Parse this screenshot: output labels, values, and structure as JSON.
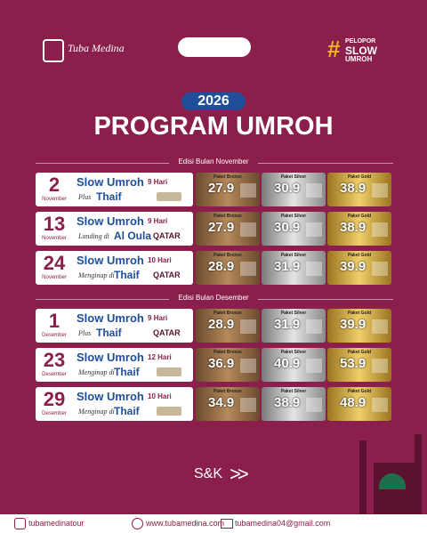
{
  "header": {
    "brand": "Tuba Medina",
    "badge": [
      "#",
      "PELOPOR",
      "SLOW",
      "UMROH"
    ],
    "year": "2026",
    "title": "PROGRAM UMROH"
  },
  "package_labels": [
    "Paket Bronze",
    "Paket Silver",
    "Paket Gold"
  ],
  "sections": [
    {
      "label": "Edisi Bulan November",
      "rows": [
        {
          "day": "2",
          "month": "November",
          "program": "Slow Umroh",
          "duration": "9 Hari",
          "subtitle": "Plus",
          "place": "Thaif",
          "airline": null,
          "prices": [
            27.9,
            30.9,
            38.9
          ]
        },
        {
          "day": "13",
          "month": "November",
          "program": "Slow Umroh",
          "duration": "9 Hari",
          "subtitle": "Landing di",
          "place": "Al Oula",
          "airline": "QATAR",
          "prices": [
            27.9,
            30.9,
            38.9
          ]
        },
        {
          "day": "24",
          "month": "November",
          "program": "Slow Umroh",
          "duration": "10 Hari",
          "subtitle": "Menginap di",
          "place": "Thaif",
          "airline": "QATAR",
          "prices": [
            28.9,
            31.9,
            39.9
          ]
        }
      ]
    },
    {
      "label": "Edisi Bulan Desember",
      "rows": [
        {
          "day": "1",
          "month": "Desember",
          "program": "Slow Umroh",
          "duration": "9 Hari",
          "subtitle": "Plus",
          "place": "Thaif",
          "airline": "QATAR",
          "prices": [
            28.9,
            31.9,
            39.9
          ]
        },
        {
          "day": "23",
          "month": "Desember",
          "program": "Slow Umroh",
          "duration": "12 Hari",
          "subtitle": "Menginap di",
          "place": "Thaif",
          "airline": null,
          "prices": [
            36.9,
            40.9,
            53.9
          ]
        },
        {
          "day": "29",
          "month": "Desember",
          "program": "Slow Umroh",
          "duration": "10 Hari",
          "subtitle": "Menginap di",
          "place": "Thaif",
          "airline": null,
          "prices": [
            34.9,
            38.9,
            48.9
          ]
        }
      ]
    }
  ],
  "footer": {
    "terms": "S&K",
    "arrows": ">>",
    "instagram": "tubamedinatour",
    "website": "www.tubamedina.com",
    "email": "tubamedina04@gmail.com"
  }
}
